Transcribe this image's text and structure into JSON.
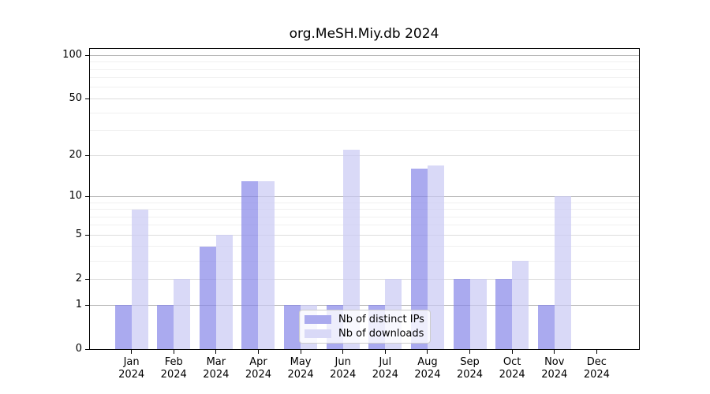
{
  "title": "org.MeSH.Miy.db 2024",
  "legend": {
    "items": [
      {
        "label": "Nb of distinct IPs"
      },
      {
        "label": "Nb of downloads"
      }
    ]
  },
  "colors": {
    "ips_bar_fill": "rgba(134,134,232,0.7)",
    "downloads_bar_fill": "rgba(201,201,244,0.7)",
    "ips_swatch": "#aaaaee",
    "downloads_swatch": "#d9d9f7",
    "grid_decade": "#b5b5b5",
    "grid_major": "#dcdcdc",
    "grid_minor": "#f0f0f0",
    "axis": "#000000",
    "background": "#ffffff"
  },
  "y_axis": {
    "tick_labels": [
      "0",
      "1",
      "2",
      "5",
      "10",
      "20",
      "50",
      "100"
    ]
  },
  "x_axis": {
    "months": [
      "Jan",
      "Feb",
      "Mar",
      "Apr",
      "May",
      "Jun",
      "Jul",
      "Aug",
      "Sep",
      "Oct",
      "Nov",
      "Dec"
    ],
    "year": "2024"
  },
  "chart_data": {
    "type": "bar",
    "title": "org.MeSH.Miy.db 2024",
    "categories": [
      "Jan 2024",
      "Feb 2024",
      "Mar 2024",
      "Apr 2024",
      "May 2024",
      "Jun 2024",
      "Jul 2024",
      "Aug 2024",
      "Sep 2024",
      "Oct 2024",
      "Nov 2024",
      "Dec 2024"
    ],
    "series": [
      {
        "name": "Nb of distinct IPs",
        "values": [
          1,
          1,
          4,
          13,
          1,
          1,
          1,
          16,
          2,
          2,
          1,
          0
        ]
      },
      {
        "name": "Nb of downloads",
        "values": [
          8,
          2,
          5,
          13,
          1,
          22,
          2,
          17,
          2,
          3,
          10,
          0
        ]
      }
    ],
    "yscale": "log1p",
    "ylim": [
      0,
      112
    ],
    "yticks_major": [
      0,
      1,
      2,
      5,
      10,
      20,
      50,
      100
    ],
    "yticks_minor": [
      3,
      4,
      6,
      7,
      8,
      9,
      30,
      40,
      60,
      70,
      80,
      90
    ],
    "grid": true,
    "legend_position": "lower-center-inside"
  }
}
